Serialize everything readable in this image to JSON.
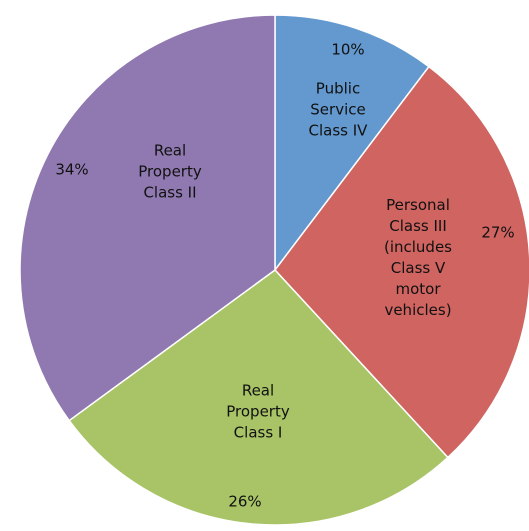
{
  "chart_data": {
    "type": "pie",
    "categories": [
      "Public Service Class IV",
      "Personal Class III (includes Class V motor vehicles)",
      "Real Property Class I",
      "Real Property Class II"
    ],
    "values": [
      10,
      27,
      26,
      34
    ],
    "value_labels": [
      "10%",
      "27%",
      "26%",
      "34%"
    ],
    "colors": [
      "#6399cf",
      "#cf6460",
      "#a9c467",
      "#9079b0"
    ]
  }
}
